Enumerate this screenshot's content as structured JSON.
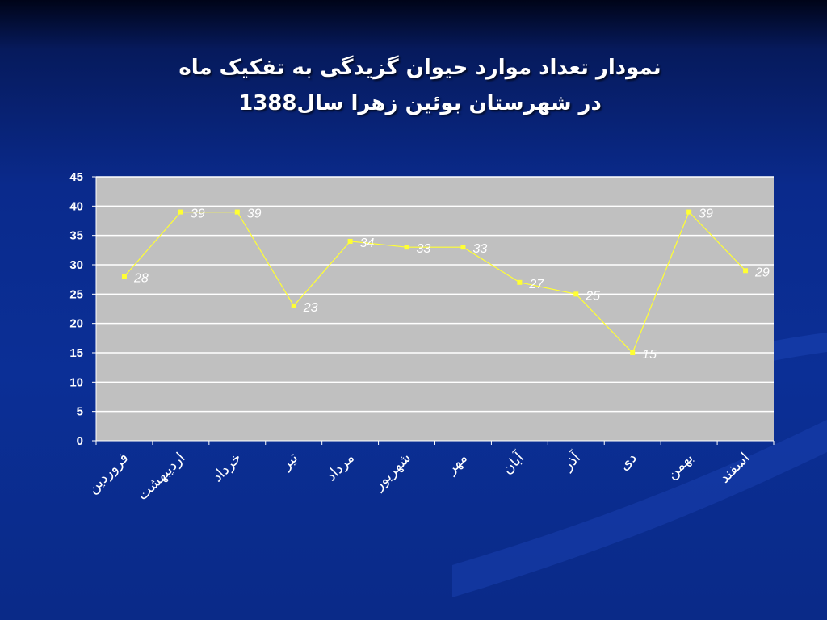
{
  "title": {
    "line1": "نمودار تعداد موارد حیوان گزیدگی به تفکیک ماه",
    "line2": "در شهرستان بوئین زهرا سال1388"
  },
  "colors": {
    "background": "#0b2f96",
    "plot_area": "#c0c0c0",
    "series_line": "#ffff33",
    "gridline": "#ffffff"
  },
  "chart_data": {
    "type": "line",
    "title": "نمودار تعداد موارد حیوان گزیدگی به تفکیک ماه در شهرستان بوئین زهرا سال1388",
    "categories": [
      "فروردین",
      "اردیبهشت",
      "خرداد",
      "تیر",
      "مرداد",
      "شهریور",
      "مهر",
      "آبان",
      "آذر",
      "دی",
      "بهمن",
      "اسفند"
    ],
    "series": [
      {
        "values": [
          28,
          39,
          39,
          23,
          34,
          33,
          33,
          27,
          25,
          15,
          39,
          29
        ],
        "data_labels": [
          "28",
          "39",
          "39",
          "23",
          "34",
          "33",
          "33",
          "27",
          "25",
          "15",
          "39",
          "29"
        ]
      }
    ],
    "ylim": [
      0,
      45
    ],
    "yticks": [
      "0",
      "5",
      "10",
      "15",
      "20",
      "25",
      "30",
      "35",
      "40",
      "45"
    ],
    "xlabel": "",
    "ylabel": "",
    "grid": true,
    "legend": "none"
  }
}
